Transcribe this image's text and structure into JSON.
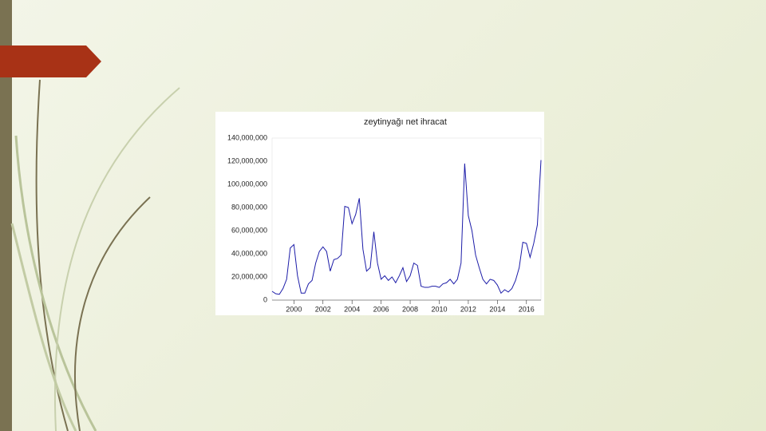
{
  "chart_data": {
    "type": "line",
    "title": "zeytinyağı net ihracat",
    "x": [
      1998.5,
      1998.75,
      1999,
      1999.25,
      1999.5,
      1999.75,
      2000,
      2000.25,
      2000.5,
      2000.75,
      2001,
      2001.25,
      2001.5,
      2001.75,
      2002,
      2002.25,
      2002.5,
      2002.75,
      2003,
      2003.25,
      2003.5,
      2003.75,
      2004,
      2004.25,
      2004.5,
      2004.75,
      2005,
      2005.25,
      2005.5,
      2005.75,
      2006,
      2006.25,
      2006.5,
      2006.75,
      2007,
      2007.25,
      2007.5,
      2007.75,
      2008,
      2008.25,
      2008.5,
      2008.75,
      2009,
      2009.25,
      2009.5,
      2009.75,
      2010,
      2010.25,
      2010.5,
      2010.75,
      2011,
      2011.25,
      2011.5,
      2011.75,
      2012,
      2012.25,
      2012.5,
      2012.75,
      2013,
      2013.25,
      2013.5,
      2013.75,
      2014,
      2014.25,
      2014.5,
      2014.75,
      2015,
      2015.25,
      2015.5,
      2015.75,
      2016,
      2016.25,
      2016.5,
      2016.75,
      2017
    ],
    "values": [
      7600000,
      5500000,
      5000000,
      10000000,
      18000000,
      45000000,
      48000000,
      21000000,
      6000000,
      6000000,
      14000000,
      17000000,
      32000000,
      42000000,
      46000000,
      42000000,
      25000000,
      35000000,
      36000000,
      39000000,
      81000000,
      80000000,
      66000000,
      74000000,
      88000000,
      44000000,
      25000000,
      28000000,
      59000000,
      32000000,
      18000000,
      21000000,
      17000000,
      20000000,
      15000000,
      21000000,
      28000000,
      16000000,
      21000000,
      32000000,
      30000000,
      12000000,
      11000000,
      11000000,
      12000000,
      12000000,
      11000000,
      14000000,
      15000000,
      18000000,
      14000000,
      18000000,
      32000000,
      118000000,
      73000000,
      60000000,
      39000000,
      28000000,
      18000000,
      14000000,
      18000000,
      17000000,
      13000000,
      6000000,
      9000000,
      7000000,
      10000000,
      17000000,
      28000000,
      50000000,
      49000000,
      37000000,
      49000000,
      65000000,
      121000000
    ],
    "color": "#1c1ca8",
    "xlim": [
      1998.5,
      2017
    ],
    "xticks": [
      2000,
      2002,
      2004,
      2006,
      2008,
      2010,
      2012,
      2014,
      2016
    ],
    "ylim": [
      0,
      140000000
    ],
    "yticks": [
      0,
      {
        "value": 20000000,
        "label": "20,000,000"
      },
      {
        "value": 40000000,
        "label": "40,000,000"
      },
      {
        "value": 60000000,
        "label": "60,000,000"
      },
      {
        "value": 80000000,
        "label": "80,000,000"
      },
      {
        "value": 100000000,
        "label": "100,000,000"
      },
      {
        "value": 120000000,
        "label": "120,000,000"
      },
      {
        "value": 140000000,
        "label": "140,000,000"
      }
    ],
    "grid": false
  }
}
